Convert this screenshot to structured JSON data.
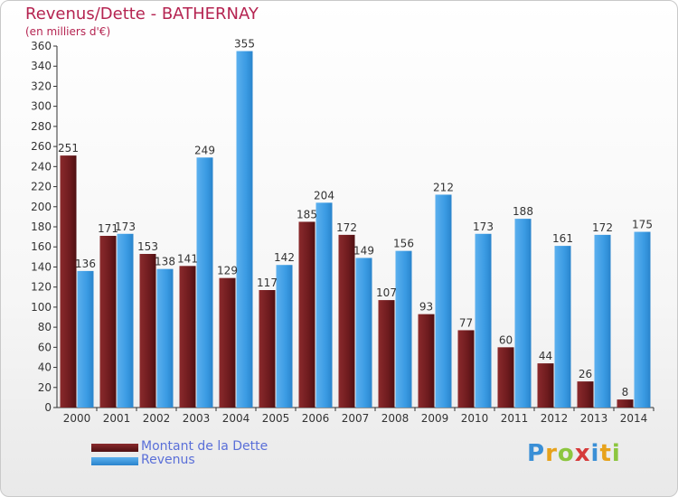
{
  "header": {
    "title": "Revenus/Dette - BATHERNAY",
    "subtitle": "(en milliers d'€)"
  },
  "legend": {
    "debt_label": "Montant de la Dette",
    "revenue_label": "Revenus"
  },
  "logo": {
    "text": "Proxiti"
  },
  "colors": {
    "debt": "#7a1f22",
    "revenue": "#3a9be3",
    "title": "#b52451",
    "legend_text": "#5a6fd8"
  },
  "chart_data": {
    "type": "bar",
    "title": "Revenus/Dette - BATHERNAY",
    "ylabel": "(en milliers d'€)",
    "xlabel": "",
    "ylim": [
      0,
      360
    ],
    "ytick_step": 20,
    "grid": false,
    "legend_position": "bottom-left",
    "categories": [
      "2000",
      "2001",
      "2002",
      "2003",
      "2004",
      "2005",
      "2006",
      "2007",
      "2008",
      "2009",
      "2010",
      "2011",
      "2012",
      "2013",
      "2014"
    ],
    "series": [
      {
        "name": "Montant de la Dette",
        "values": [
          251,
          171,
          153,
          141,
          129,
          117,
          185,
          172,
          107,
          93,
          77,
          60,
          44,
          26,
          8
        ]
      },
      {
        "name": "Revenus",
        "values": [
          136,
          173,
          138,
          249,
          355,
          142,
          204,
          149,
          156,
          212,
          173,
          188,
          161,
          172,
          175
        ]
      }
    ]
  }
}
